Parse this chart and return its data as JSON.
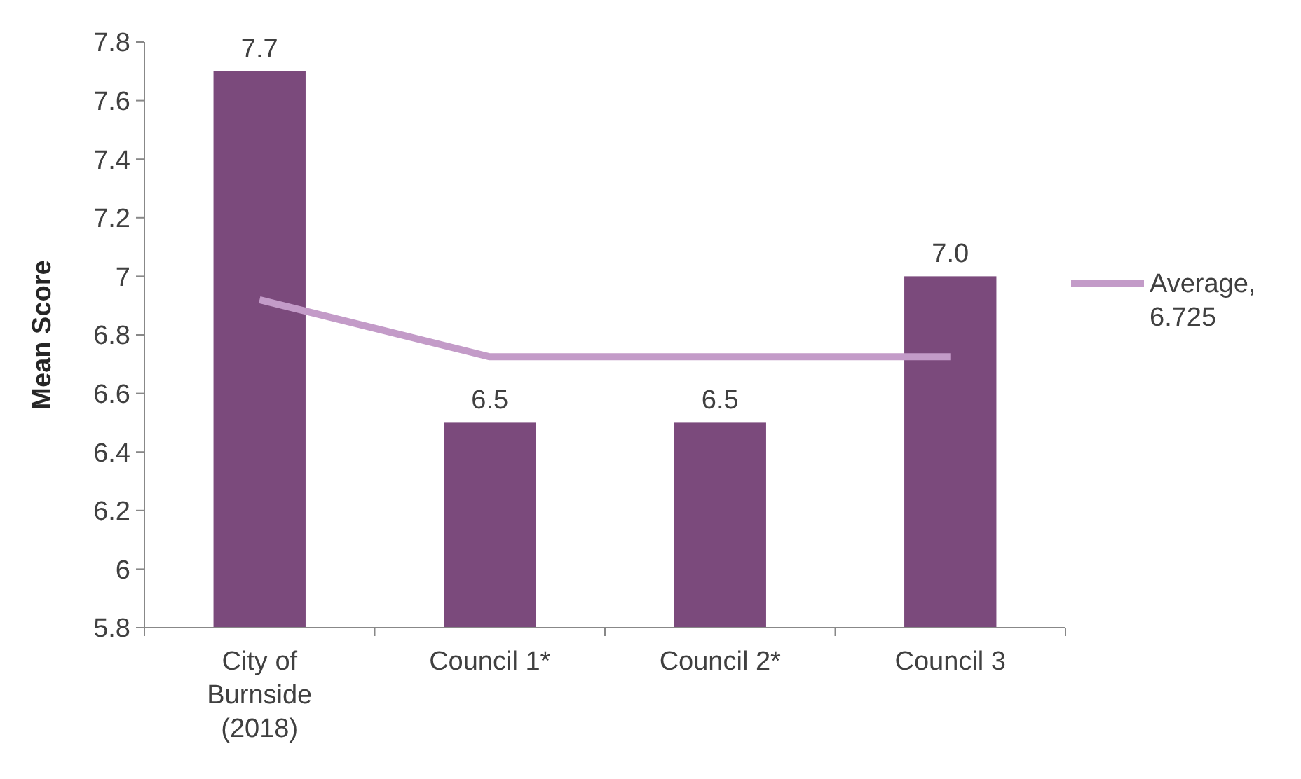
{
  "chart_data": {
    "type": "bar",
    "ylabel": "Mean Score",
    "categories": [
      "City of Burnside (2018)",
      "Council 1*",
      "Council 2*",
      "Council 3"
    ],
    "series": [
      {
        "color": "#7b4a7c",
        "values": [
          7.7,
          6.5,
          6.5,
          7.0
        ],
        "value_labels": [
          "7.7",
          "6.5",
          "6.5",
          "7.0"
        ]
      },
      {
        "type": "line",
        "name": "Average, 6.725",
        "color": "#c39bc8",
        "values": [
          6.92,
          6.725,
          6.725,
          6.725
        ],
        "marker": "none"
      }
    ],
    "ylim": [
      5.8,
      7.8
    ],
    "yticks": [
      5.8,
      6,
      6.2,
      6.4,
      6.6,
      6.8,
      7,
      7.2,
      7.4,
      7.6,
      7.8
    ],
    "grid": false,
    "legend": "right"
  }
}
